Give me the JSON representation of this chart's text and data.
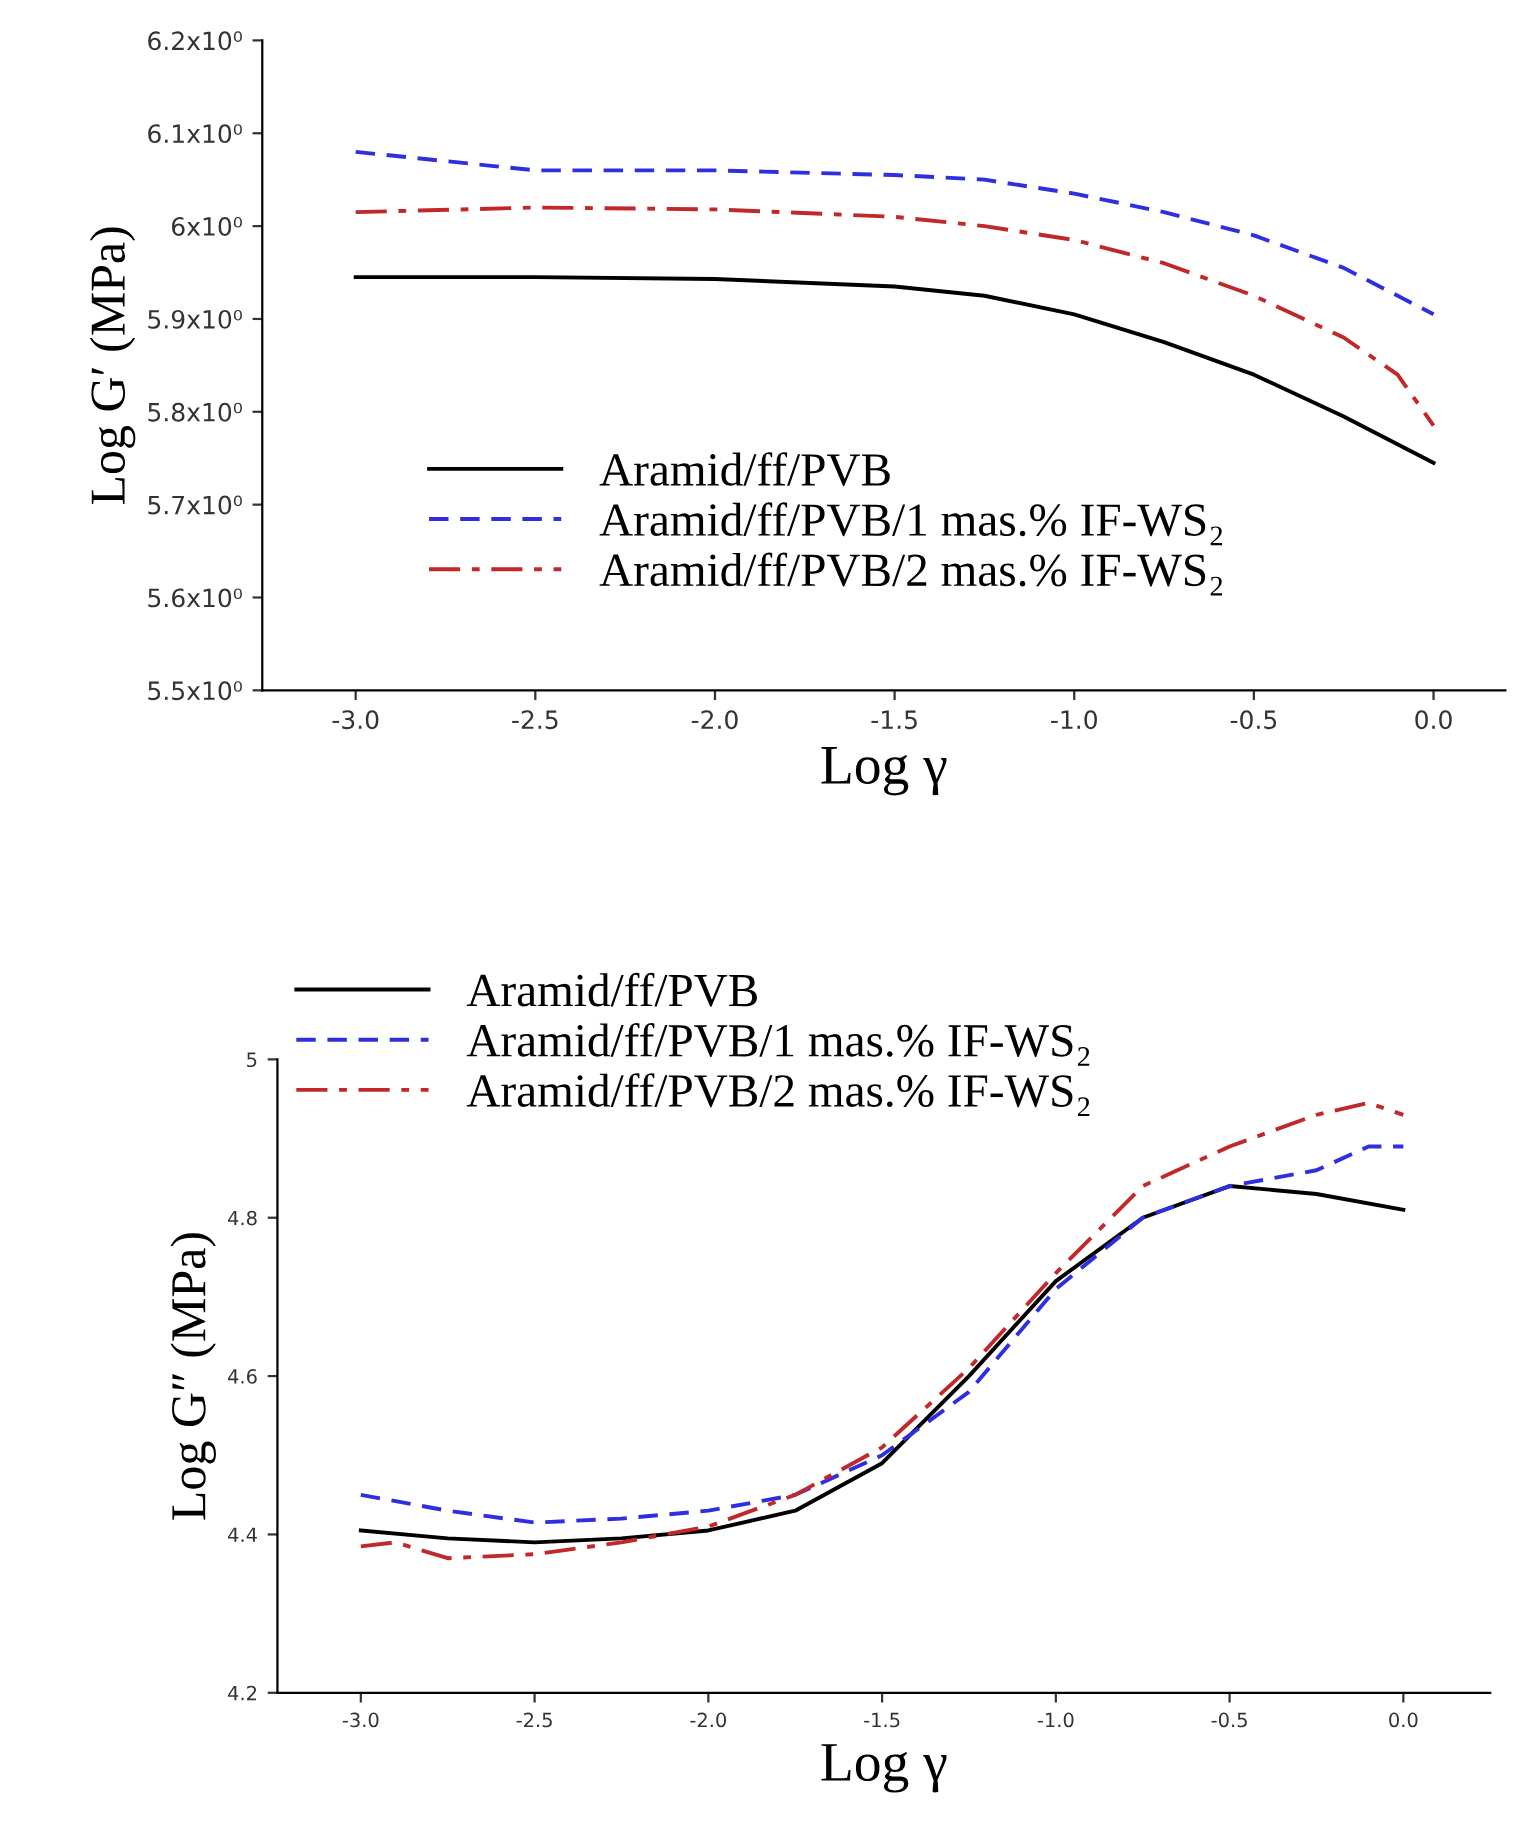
{
  "chart_data": [
    {
      "type": "line",
      "xlabel": "Log γ",
      "ylabel": "Log G′ (MPa)",
      "xlim": [
        -3.26,
        0.2
      ],
      "xticks": [
        {
          "value": -3.0,
          "label": "-3.0"
        },
        {
          "value": -2.5,
          "label": "-2.5"
        },
        {
          "value": -2.0,
          "label": "-2.0"
        },
        {
          "value": -1.5,
          "label": "-1.5"
        },
        {
          "value": -1.0,
          "label": "-1.0"
        },
        {
          "value": -0.5,
          "label": "-0.5"
        },
        {
          "value": 0.0,
          "label": "0.0"
        }
      ],
      "ylim": [
        5.5,
        6.2
      ],
      "yticks": [
        {
          "value": 5.5,
          "label": "5.5x10⁰"
        },
        {
          "value": 5.6,
          "label": "5.6x10⁰"
        },
        {
          "value": 5.7,
          "label": "5.7x10⁰"
        },
        {
          "value": 5.8,
          "label": "5.8x10⁰"
        },
        {
          "value": 5.9,
          "label": "5.9x10⁰"
        },
        {
          "value": 6.0,
          "label": "6x10⁰"
        },
        {
          "value": 6.1,
          "label": "6.1x10⁰"
        },
        {
          "value": 6.2,
          "label": "6.2x10⁰"
        }
      ],
      "legend": "bottom left",
      "grid": false,
      "series": [
        {
          "name": "Aramid/ff/PVB",
          "color": "#000000",
          "line_style": "solid",
          "x": [
            -3,
            -2.5,
            -2,
            -1.5,
            -1.25,
            -1,
            -0.75,
            -0.5,
            -0.25,
            0
          ],
          "values": [
            5.945,
            5.945,
            5.943,
            5.935,
            5.925,
            5.905,
            5.875,
            5.84,
            5.795,
            5.745
          ]
        },
        {
          "name": "Aramid/ff/PVB/1 mas.% IF-WS₂",
          "color": "#2f2fdf",
          "line_style": "dashed",
          "x": [
            -3,
            -2.75,
            -2.5,
            -2,
            -1.5,
            -1.25,
            -1,
            -0.75,
            -0.5,
            -0.25,
            0
          ],
          "values": [
            6.08,
            6.07,
            6.06,
            6.06,
            6.055,
            6.05,
            6.035,
            6.015,
            5.99,
            5.955,
            5.905
          ]
        },
        {
          "name": "Aramid/ff/PVB/2 mas.% IF-WS₂",
          "color": "#c0282a",
          "line_style": "dashdot",
          "x": [
            -3,
            -2.5,
            -2,
            -1.5,
            -1.25,
            -1,
            -0.75,
            -0.5,
            -0.25,
            -0.1,
            0
          ],
          "values": [
            6.015,
            6.02,
            6.018,
            6.01,
            6.0,
            5.985,
            5.96,
            5.925,
            5.88,
            5.84,
            5.785
          ]
        }
      ]
    },
    {
      "type": "line",
      "xlabel": "Log γ",
      "ylabel": "Log G″ (MPa)",
      "xlim": [
        -3.24,
        0.25
      ],
      "xticks": [
        {
          "value": -3.0,
          "label": "-3.0"
        },
        {
          "value": -2.5,
          "label": "-2.5"
        },
        {
          "value": -2.0,
          "label": "-2.0"
        },
        {
          "value": -1.5,
          "label": "-1.5"
        },
        {
          "value": -1.0,
          "label": "-1.0"
        },
        {
          "value": -0.5,
          "label": "-0.5"
        },
        {
          "value": 0.0,
          "label": "0.0"
        }
      ],
      "ylim": [
        4.2,
        5.0
      ],
      "yticks": [
        4.2,
        4.4,
        4.6,
        4.8,
        5
      ],
      "legend": "top left",
      "grid": false,
      "series": [
        {
          "name": "Aramid/ff/PVB",
          "color": "#000000",
          "line_style": "solid",
          "x": [
            -3,
            -2.75,
            -2.5,
            -2.25,
            -2,
            -1.75,
            -1.5,
            -1.25,
            -1,
            -0.75,
            -0.5,
            -0.25,
            0
          ],
          "values": [
            4.405,
            4.395,
            4.39,
            4.395,
            4.405,
            4.43,
            4.49,
            4.6,
            4.72,
            4.8,
            4.84,
            4.83,
            4.81
          ]
        },
        {
          "name": "Aramid/ff/PVB/1 mas.% IF-WS₂",
          "color": "#2f2fdf",
          "line_style": "dashed",
          "x": [
            -3,
            -2.75,
            -2.5,
            -2.25,
            -2,
            -1.75,
            -1.5,
            -1.25,
            -1,
            -0.75,
            -0.5,
            -0.25,
            -0.1,
            0
          ],
          "values": [
            4.45,
            4.43,
            4.415,
            4.42,
            4.43,
            4.45,
            4.5,
            4.58,
            4.71,
            4.8,
            4.84,
            4.86,
            4.89,
            4.89
          ]
        },
        {
          "name": "Aramid/ff/PVB/2 mas.% IF-WS₂",
          "color": "#c0282a",
          "line_style": "dashdot",
          "x": [
            -3,
            -2.9,
            -2.75,
            -2.5,
            -2.25,
            -2,
            -1.75,
            -1.5,
            -1.25,
            -1,
            -0.75,
            -0.5,
            -0.25,
            -0.1,
            0
          ],
          "values": [
            4.385,
            4.39,
            4.37,
            4.375,
            4.39,
            4.41,
            4.45,
            4.51,
            4.61,
            4.73,
            4.84,
            4.89,
            4.93,
            4.945,
            4.93
          ]
        }
      ]
    }
  ]
}
